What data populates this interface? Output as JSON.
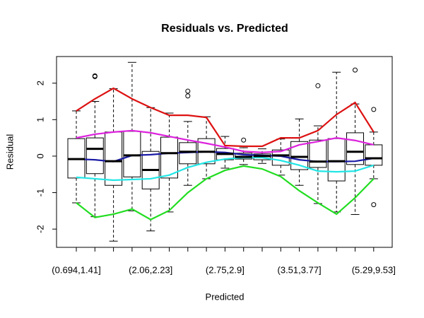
{
  "chart_data": {
    "type": "boxplot",
    "title": "Residuals vs. Predicted",
    "x_label": "Predicted",
    "y_label": "Residual",
    "categories": [
      "(0.694,1.41]",
      null,
      null,
      null,
      "(2.06,2.23]",
      null,
      null,
      null,
      "(2.75,2.9]",
      null,
      null,
      null,
      "(3.51,3.77]",
      null,
      null,
      null,
      "(5.29,9.53]"
    ],
    "boxes": [
      {
        "low": -1.28,
        "q1": -0.6,
        "median": -0.08,
        "q3": 0.48,
        "high": 1.24,
        "outliers": []
      },
      {
        "low": -1.66,
        "q1": -0.48,
        "median": 0.2,
        "q3": 0.5,
        "high": 1.5,
        "outliers": [
          2.2,
          2.18
        ]
      },
      {
        "low": -2.33,
        "q1": -0.8,
        "median": -0.14,
        "q3": 0.66,
        "high": 1.85,
        "outliers": []
      },
      {
        "low": -1.5,
        "q1": -0.57,
        "median": 0.02,
        "q3": 0.68,
        "high": 2.57,
        "outliers": []
      },
      {
        "low": -2.05,
        "q1": -0.9,
        "median": -0.38,
        "q3": 0.13,
        "high": 1.33,
        "outliers": []
      },
      {
        "low": -1.53,
        "q1": -0.6,
        "median": 0.08,
        "q3": 0.52,
        "high": 1.18,
        "outliers": []
      },
      {
        "low": -0.8,
        "q1": -0.21,
        "median": 0.12,
        "q3": 0.37,
        "high": 0.95,
        "outliers": [
          1.78,
          1.65
        ]
      },
      {
        "low": -0.62,
        "q1": -0.21,
        "median": 0.12,
        "q3": 0.48,
        "high": 1.08,
        "outliers": []
      },
      {
        "low": -0.33,
        "q1": -0.1,
        "median": 0.06,
        "q3": 0.21,
        "high": 0.54,
        "outliers": []
      },
      {
        "low": -0.23,
        "q1": -0.08,
        "median": -0.02,
        "q3": 0.08,
        "high": 0.23,
        "outliers": [
          0.44
        ]
      },
      {
        "low": -0.2,
        "q1": -0.1,
        "median": 0,
        "q3": 0.06,
        "high": 0.2,
        "outliers": []
      },
      {
        "low": -0.52,
        "q1": -0.25,
        "median": 0.02,
        "q3": 0.17,
        "high": 0.47,
        "outliers": []
      },
      {
        "low": -0.8,
        "q1": -0.37,
        "median": -0.02,
        "q3": 0.4,
        "high": 1.02,
        "outliers": []
      },
      {
        "low": -1.3,
        "q1": -0.31,
        "median": -0.15,
        "q3": 0.44,
        "high": 0.83,
        "outliers": [
          1.93
        ]
      },
      {
        "low": -1.53,
        "q1": -0.68,
        "median": -0.14,
        "q3": 0.48,
        "high": 2.3,
        "outliers": []
      },
      {
        "low": -1.6,
        "q1": -0.23,
        "median": 0.12,
        "q3": 0.64,
        "high": 1.43,
        "outliers": [
          2.36
        ]
      },
      {
        "low": -0.62,
        "q1": -0.25,
        "median": -0.06,
        "q3": 0.31,
        "high": 0.66,
        "outliers": [
          1.28,
          -1.33
        ]
      }
    ],
    "lines": [
      {
        "color": "#dd1111",
        "values": [
          1.24,
          1.57,
          1.86,
          1.57,
          1.33,
          1.12,
          1.12,
          1.06,
          0.29,
          0.27,
          0.27,
          0.5,
          0.5,
          0.7,
          1.14,
          1.47,
          0.66
        ]
      },
      {
        "color": "#dd22dd",
        "values": [
          0.5,
          0.6,
          0.66,
          0.7,
          0.64,
          0.54,
          0.44,
          0.35,
          0.25,
          0.13,
          0.1,
          0.13,
          0.31,
          0.4,
          0.5,
          0.43,
          0.31
        ]
      },
      {
        "color": "#1a1aa6",
        "values": [
          -0.08,
          -0.1,
          -0.15,
          0.02,
          0.04,
          0.08,
          0.1,
          0.12,
          0.1,
          0.04,
          0.02,
          0,
          -0.1,
          -0.15,
          -0.15,
          -0.14,
          -0.06
        ]
      },
      {
        "color": "#22e6e6",
        "values": [
          -0.58,
          -0.62,
          -0.66,
          -0.64,
          -0.62,
          -0.52,
          -0.31,
          -0.17,
          -0.08,
          -0.04,
          -0.04,
          -0.12,
          -0.25,
          -0.41,
          -0.43,
          -0.41,
          -0.25
        ]
      },
      {
        "color": "#22dd22",
        "values": [
          -1.28,
          -1.68,
          -1.59,
          -1.45,
          -1.74,
          -1.49,
          -1.0,
          -0.62,
          -0.39,
          -0.27,
          -0.35,
          -0.56,
          -0.95,
          -1.28,
          -1.59,
          -1.14,
          -0.62
        ]
      }
    ],
    "ylim": [
      -2.5,
      2.73
    ],
    "yticks": [
      -2,
      -1,
      0,
      1,
      2
    ]
  }
}
